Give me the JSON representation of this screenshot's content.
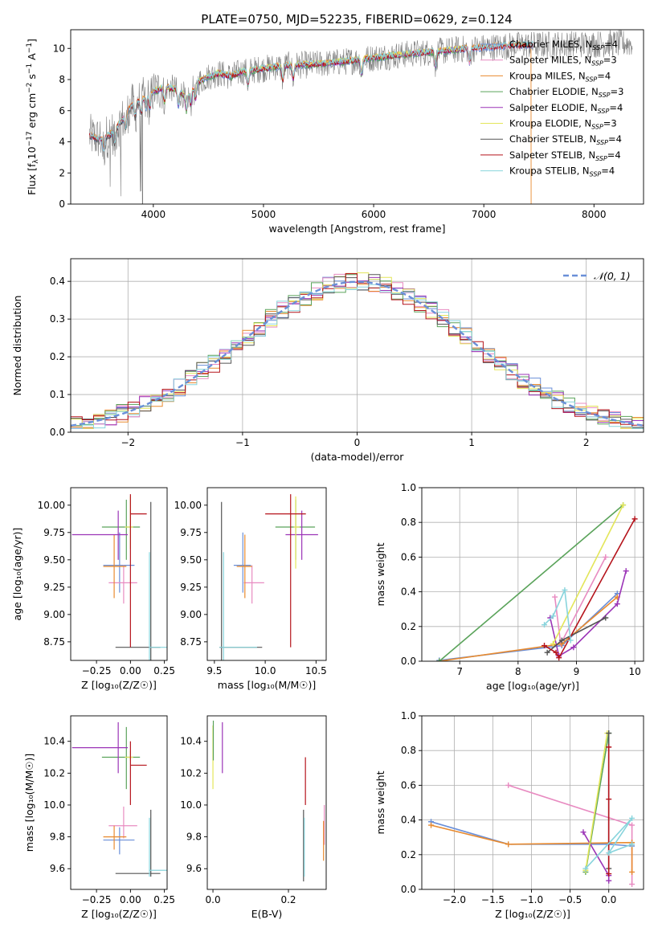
{
  "figure_title": "PLATE=0750, MJD=52235, FIBERID=0629, z=0.124",
  "colors": {
    "chabrier_miles": "#6a8fd8",
    "salpeter_miles": "#e88bc1",
    "kroupa_miles": "#e88a2e",
    "chabrier_elodie": "#5aa35a",
    "salpeter_elodie": "#9b34b7",
    "kroupa_elodie": "#e3e65a",
    "chabrier_stelib": "#555555",
    "salpeter_stelib": "#b5141c",
    "kroupa_stelib": "#88d4dc",
    "normal": "#6a8fd8",
    "data_spectrum": "#808080"
  },
  "chart_data": [
    {
      "id": "spectrum",
      "type": "line",
      "title": "PLATE=0750, MJD=52235, FIBERID=0629, z=0.124",
      "xlabel": "wavelength [Angstrom, rest frame]",
      "ylabel_parts": [
        "Flux [f",
        "λ",
        "10",
        "−17",
        " erg cm",
        "−2",
        " s",
        "−1",
        " A",
        "−1",
        "]"
      ],
      "xlim": [
        3250,
        8450
      ],
      "ylim": [
        0,
        11.2
      ],
      "xticks": [
        "4000",
        "5000",
        "6000",
        "7000",
        "8000"
      ],
      "xtick_values": [
        4000,
        5000,
        6000,
        7000,
        8000
      ],
      "yticks": [
        "0",
        "2",
        "4",
        "6",
        "8",
        "10"
      ],
      "ytick_values": [
        0,
        2,
        4,
        6,
        8,
        10
      ],
      "grid": false,
      "legend_position": "top-right",
      "legend": [
        {
          "key": "chabrier_miles",
          "label": "Chabrier MILES, N",
          "sub": "SSP",
          "tail": "=4"
        },
        {
          "key": "salpeter_miles",
          "label": "Salpeter MILES, N",
          "sub": "SSP",
          "tail": "=3"
        },
        {
          "key": "kroupa_miles",
          "label": "Kroupa MILES, N",
          "sub": "SSP",
          "tail": "=4"
        },
        {
          "key": "chabrier_elodie",
          "label": "Chabrier ELODIE, N",
          "sub": "SSP",
          "tail": "=3"
        },
        {
          "key": "salpeter_elodie",
          "label": "Salpeter ELODIE, N",
          "sub": "SSP",
          "tail": "=4"
        },
        {
          "key": "kroupa_elodie",
          "label": "Kroupa ELODIE, N",
          "sub": "SSP",
          "tail": "=3"
        },
        {
          "key": "chabrier_stelib",
          "label": "Chabrier STELIB, N",
          "sub": "SSP",
          "tail": "=4"
        },
        {
          "key": "salpeter_stelib",
          "label": "Salpeter STELIB, N",
          "sub": "SSP",
          "tail": "=4"
        },
        {
          "key": "kroupa_stelib",
          "label": "Kroupa STELIB, N",
          "sub": "SSP",
          "tail": "=4"
        }
      ],
      "continuum": {
        "x": [
          3420,
          3500,
          3600,
          3700,
          3800,
          3900,
          4000,
          4100,
          4200,
          4300,
          4400,
          4500,
          4600,
          4700,
          4800,
          4900,
          5000,
          5200,
          5400,
          5600,
          5800,
          6000,
          6200,
          6400,
          6600,
          6800,
          7000,
          7200,
          7300
        ],
        "y": [
          4.4,
          4.2,
          4.4,
          5.2,
          6.3,
          6.8,
          7.2,
          7.5,
          7.4,
          6.9,
          7.8,
          8.2,
          8.4,
          8.2,
          8.5,
          8.6,
          8.7,
          8.9,
          8.95,
          9.05,
          9.2,
          9.4,
          9.55,
          9.7,
          9.8,
          9.95,
          10.05,
          10.15,
          10.2
        ]
      },
      "data_noise": 0.9,
      "data_range": [
        3420,
        8350
      ],
      "model_range": [
        3420,
        7450
      ],
      "model_dropouts": [
        {
          "key": "kroupa_miles",
          "x": 7430
        },
        {
          "key": "kroupa_elodie",
          "x": 6800
        },
        {
          "key": "chabrier_stelib",
          "x": 3900
        }
      ]
    },
    {
      "id": "residuals",
      "type": "line",
      "xlabel": "(data-model)/error",
      "ylabel": "Normed distribution",
      "xlim": [
        -2.5,
        2.5
      ],
      "ylim": [
        0,
        0.46
      ],
      "xticks": [
        "−2",
        "−1",
        "0",
        "1",
        "2"
      ],
      "xtick_values": [
        -2,
        -1,
        0,
        1,
        2
      ],
      "yticks": [
        "0.0",
        "0.1",
        "0.2",
        "0.3",
        "0.4"
      ],
      "ytick_values": [
        0,
        0.1,
        0.2,
        0.3,
        0.4
      ],
      "grid": true,
      "legend_position": "top-right",
      "legend_label": "𝒩(0, 1)",
      "bin_width": 0.1
    },
    {
      "id": "age_vs_z",
      "type": "scatter",
      "xlabel": "Z [log₁₀(Z/Z☉)]",
      "ylabel": "age  [log₁₀(age/yr)]",
      "xlim": [
        -0.44,
        0.27
      ],
      "ylim": [
        8.58,
        10.16
      ],
      "xticks": [
        "−0.25",
        "0.00",
        "0.25"
      ],
      "xtick_values": [
        -0.25,
        0,
        0.25
      ],
      "yticks": [
        "8.75",
        "9.00",
        "9.25",
        "9.50",
        "9.75",
        "10.00"
      ],
      "ytick_values": [
        8.75,
        9.0,
        9.25,
        9.5,
        9.75,
        10.0
      ],
      "points": [
        {
          "key": "chabrier_miles",
          "x": -0.08,
          "y": 9.45,
          "xlo": -0.2,
          "xhi": 0.03,
          "ylo": 9.2,
          "yhi": 9.75
        },
        {
          "key": "salpeter_miles",
          "x": -0.05,
          "y": 9.29,
          "xlo": -0.16,
          "xhi": 0.05,
          "ylo": 9.1,
          "yhi": 9.45
        },
        {
          "key": "kroupa_miles",
          "x": -0.12,
          "y": 9.44,
          "xlo": -0.2,
          "xhi": -0.03,
          "ylo": 9.15,
          "yhi": 9.73
        },
        {
          "key": "chabrier_elodie",
          "x": -0.03,
          "y": 9.8,
          "xlo": -0.21,
          "xhi": 0.07,
          "ylo": 9.5,
          "yhi": 10.05
        },
        {
          "key": "salpeter_elodie",
          "x": -0.09,
          "y": 9.73,
          "xlo": -0.43,
          "xhi": -0.02,
          "ylo": 9.5,
          "yhi": 9.95
        },
        {
          "key": "kroupa_elodie",
          "x": 0.0,
          "y": 9.8,
          "xlo": -0.04,
          "xhi": 0.02,
          "ylo": 9.6,
          "yhi": 10.08
        },
        {
          "key": "chabrier_stelib",
          "x": 0.15,
          "y": 8.7,
          "xlo": -0.11,
          "xhi": 0.22,
          "ylo": 8.55,
          "yhi": 10.03
        },
        {
          "key": "salpeter_stelib",
          "x": 0.0,
          "y": 9.92,
          "xlo": 0.0,
          "xhi": 0.12,
          "ylo": 8.7,
          "yhi": 10.1
        },
        {
          "key": "kroupa_stelib",
          "x": 0.14,
          "y": 8.7,
          "xlo": 0.14,
          "xhi": 0.28,
          "ylo": 8.55,
          "yhi": 9.57
        }
      ]
    },
    {
      "id": "age_vs_mass",
      "type": "scatter",
      "xlabel": "mass [log₁₀(M/M☉)]",
      "ylabel": "",
      "xlim": [
        9.43,
        10.6
      ],
      "ylim": [
        8.58,
        10.16
      ],
      "xticks": [
        "9.5",
        "10.0",
        "10.5"
      ],
      "xtick_values": [
        9.5,
        10.0,
        10.5
      ],
      "yticks": [
        "8.75",
        "9.00",
        "9.25",
        "9.50",
        "9.75",
        "10.00"
      ],
      "ytick_values": [
        8.75,
        9.0,
        9.25,
        9.5,
        9.75,
        10.0
      ],
      "points": [
        {
          "key": "chabrier_miles",
          "x": 9.78,
          "y": 9.45,
          "xlo": 9.69,
          "xhi": 9.86,
          "ylo": 9.2,
          "yhi": 9.75
        },
        {
          "key": "salpeter_miles",
          "x": 9.87,
          "y": 9.29,
          "xlo": 9.79,
          "xhi": 9.99,
          "ylo": 9.1,
          "yhi": 9.45
        },
        {
          "key": "kroupa_miles",
          "x": 9.8,
          "y": 9.44,
          "xlo": 9.72,
          "xhi": 9.87,
          "ylo": 9.15,
          "yhi": 9.73
        },
        {
          "key": "chabrier_elodie",
          "x": 10.3,
          "y": 9.8,
          "xlo": 10.1,
          "xhi": 10.49,
          "ylo": 9.5,
          "yhi": 10.05
        },
        {
          "key": "salpeter_elodie",
          "x": 10.36,
          "y": 9.73,
          "xlo": 10.2,
          "xhi": 10.52,
          "ylo": 9.5,
          "yhi": 9.95
        },
        {
          "key": "kroupa_elodie",
          "x": 10.3,
          "y": 9.8,
          "xlo": 10.28,
          "xhi": 10.34,
          "ylo": 9.42,
          "yhi": 10.08
        },
        {
          "key": "chabrier_stelib",
          "x": 9.57,
          "y": 8.7,
          "xlo": 9.55,
          "xhi": 9.97,
          "ylo": 8.55,
          "yhi": 10.03
        },
        {
          "key": "salpeter_stelib",
          "x": 10.25,
          "y": 9.92,
          "xlo": 10.0,
          "xhi": 10.4,
          "ylo": 8.7,
          "yhi": 10.1
        },
        {
          "key": "kroupa_stelib",
          "x": 9.59,
          "y": 8.7,
          "xlo": 9.55,
          "xhi": 9.92,
          "ylo": 8.55,
          "yhi": 9.57
        }
      ]
    },
    {
      "id": "weight_vs_age",
      "type": "line",
      "xlabel": "age  [log₁₀(age/yr)]",
      "ylabel": "mass weight",
      "xlim": [
        6.35,
        10.15
      ],
      "ylim": [
        0,
        1.0
      ],
      "xticks": [
        "7",
        "8",
        "9",
        "10"
      ],
      "xtick_values": [
        7,
        8,
        9,
        10
      ],
      "yticks": [
        "0.0",
        "0.2",
        "0.4",
        "0.6",
        "0.8",
        "1.0"
      ],
      "ytick_values": [
        0,
        0.2,
        0.4,
        0.6,
        0.8,
        1.0
      ],
      "grid": true,
      "series": [
        {
          "key": "chabrier_miles",
          "x": [
            6.65,
            8.75,
            9.7
          ],
          "y": [
            0.005,
            0.09,
            0.39
          ]
        },
        {
          "key": "salpeter_miles",
          "x": [
            8.63,
            8.73,
            9.5
          ],
          "y": [
            0.37,
            0.1,
            0.6
          ]
        },
        {
          "key": "kroupa_miles",
          "x": [
            6.65,
            8.75,
            9.7
          ],
          "y": [
            0.0,
            0.1,
            0.37
          ]
        },
        {
          "key": "chabrier_elodie",
          "x": [
            6.65,
            9.8
          ],
          "y": [
            0.0,
            0.9
          ]
        },
        {
          "key": "salpeter_elodie",
          "x": [
            8.55,
            8.7,
            8.95,
            9.7,
            9.85
          ],
          "y": [
            0.25,
            0.03,
            0.08,
            0.33,
            0.52
          ]
        },
        {
          "key": "kroupa_elodie",
          "x": [
            8.6,
            9.8
          ],
          "y": [
            0.1,
            0.9
          ]
        },
        {
          "key": "chabrier_stelib",
          "x": [
            8.5,
            8.75,
            9.5
          ],
          "y": [
            0.05,
            0.12,
            0.25
          ]
        },
        {
          "key": "salpeter_stelib",
          "x": [
            8.45,
            8.65,
            8.7,
            10.0
          ],
          "y": [
            0.09,
            0.05,
            0.02,
            0.82
          ]
        },
        {
          "key": "kroupa_stelib",
          "x": [
            8.45,
            8.6,
            8.8,
            8.9
          ],
          "y": [
            0.21,
            0.26,
            0.41,
            0.12
          ]
        }
      ]
    },
    {
      "id": "mass_vs_z",
      "type": "scatter",
      "xlabel": "Z [log₁₀(Z/Z☉)]",
      "ylabel": "mass [log₁₀(M/M☉)]",
      "xlim": [
        -0.44,
        0.27
      ],
      "ylim": [
        9.47,
        10.56
      ],
      "xticks": [
        "−0.25",
        "0.00",
        "0.25"
      ],
      "xtick_values": [
        -0.25,
        0,
        0.25
      ],
      "yticks": [
        "9.6",
        "9.8",
        "10.0",
        "10.2",
        "10.4"
      ],
      "ytick_values": [
        9.6,
        9.8,
        10.0,
        10.2,
        10.4
      ],
      "points": [
        {
          "key": "chabrier_miles",
          "x": -0.08,
          "y": 9.78,
          "xlo": -0.2,
          "xhi": 0.03,
          "ylo": 9.69,
          "yhi": 9.86
        },
        {
          "key": "salpeter_miles",
          "x": -0.05,
          "y": 9.87,
          "xlo": -0.16,
          "xhi": 0.05,
          "ylo": 9.79,
          "yhi": 9.99
        },
        {
          "key": "kroupa_miles",
          "x": -0.12,
          "y": 9.8,
          "xlo": -0.2,
          "xhi": -0.03,
          "ylo": 9.72,
          "yhi": 9.87
        },
        {
          "key": "chabrier_elodie",
          "x": -0.03,
          "y": 10.3,
          "xlo": -0.21,
          "xhi": 0.07,
          "ylo": 10.1,
          "yhi": 10.49
        },
        {
          "key": "salpeter_elodie",
          "x": -0.09,
          "y": 10.36,
          "xlo": -0.43,
          "xhi": -0.02,
          "ylo": 10.2,
          "yhi": 10.52
        },
        {
          "key": "kroupa_elodie",
          "x": 0.0,
          "y": 10.3,
          "xlo": -0.04,
          "xhi": 0.02,
          "ylo": 10.28,
          "yhi": 10.34
        },
        {
          "key": "chabrier_stelib",
          "x": 0.15,
          "y": 9.57,
          "xlo": -0.11,
          "xhi": 0.22,
          "ylo": 9.55,
          "yhi": 9.97
        },
        {
          "key": "salpeter_stelib",
          "x": 0.0,
          "y": 10.25,
          "xlo": 0.0,
          "xhi": 0.12,
          "ylo": 10.0,
          "yhi": 10.4
        },
        {
          "key": "kroupa_stelib",
          "x": 0.14,
          "y": 9.59,
          "xlo": 0.14,
          "xhi": 0.28,
          "ylo": 9.55,
          "yhi": 9.92
        }
      ]
    },
    {
      "id": "mass_vs_ebv",
      "type": "scatter",
      "xlabel": "E(B-V)",
      "ylabel": "",
      "xlim": [
        -0.015,
        0.3
      ],
      "ylim": [
        9.47,
        10.56
      ],
      "xticks": [
        "0.0",
        "0.2"
      ],
      "xtick_values": [
        0,
        0.2
      ],
      "yticks": [
        "9.6",
        "9.8",
        "10.0",
        "10.2",
        "10.4"
      ],
      "ytick_values": [
        9.6,
        9.8,
        10.0,
        10.2,
        10.4
      ],
      "vbars": [
        {
          "key": "kroupa_elodie",
          "x": 0.0,
          "ylo": 10.1,
          "yhi": 10.5
        },
        {
          "key": "chabrier_elodie",
          "x": 0.001,
          "ylo": 10.28,
          "yhi": 10.53
        },
        {
          "key": "salpeter_elodie",
          "x": 0.025,
          "ylo": 10.2,
          "yhi": 10.52
        },
        {
          "key": "salpeter_stelib",
          "x": 0.245,
          "ylo": 10.0,
          "yhi": 10.3
        },
        {
          "key": "chabrier_stelib",
          "x": 0.24,
          "ylo": 9.52,
          "yhi": 9.97
        },
        {
          "key": "kroupa_stelib",
          "x": 0.242,
          "ylo": 9.55,
          "yhi": 9.92
        },
        {
          "key": "salpeter_miles",
          "x": 0.295,
          "ylo": 9.75,
          "yhi": 10.0
        },
        {
          "key": "kroupa_miles",
          "x": 0.293,
          "ylo": 9.65,
          "yhi": 9.9
        }
      ]
    },
    {
      "id": "weight_vs_z",
      "type": "line",
      "xlabel": "Z [log₁₀(Z/Z☉)]",
      "ylabel": "mass weight",
      "xlim": [
        -2.42,
        0.45
      ],
      "ylim": [
        0,
        1.0
      ],
      "xticks": [
        "−2.0",
        "−1.5",
        "−1.0",
        "−0.5",
        "0.0"
      ],
      "xtick_values": [
        -2.0,
        -1.5,
        -1.0,
        -0.5,
        0.0
      ],
      "yticks": [
        "0.0",
        "0.2",
        "0.4",
        "0.6",
        "0.8",
        "1.0"
      ],
      "ytick_values": [
        0,
        0.2,
        0.4,
        0.6,
        0.8,
        1.0
      ],
      "grid": true,
      "series": [
        {
          "key": "chabrier_miles",
          "x": [
            -2.3,
            -1.3,
            0.0,
            0.3
          ],
          "y": [
            0.39,
            0.26,
            0.26,
            0.25
          ]
        },
        {
          "key": "salpeter_miles",
          "x": [
            -1.3,
            0.3,
            0.3
          ],
          "y": [
            0.6,
            0.37,
            0.03
          ]
        },
        {
          "key": "kroupa_miles",
          "x": [
            -2.3,
            -1.3,
            0.3,
            0.3
          ],
          "y": [
            0.37,
            0.26,
            0.27,
            0.1
          ]
        },
        {
          "key": "chabrier_elodie",
          "x": [
            -0.3,
            0.0
          ],
          "y": [
            0.1,
            0.9
          ]
        },
        {
          "key": "salpeter_elodie",
          "x": [
            -0.33,
            0.0,
            0.0
          ],
          "y": [
            0.33,
            0.08,
            0.05
          ]
        },
        {
          "key": "kroupa_elodie",
          "x": [
            -0.3,
            -0.02
          ],
          "y": [
            0.11,
            0.9
          ]
        },
        {
          "key": "chabrier_stelib",
          "x": [
            0.0,
            0.0
          ],
          "y": [
            0.12,
            0.9
          ]
        },
        {
          "key": "salpeter_stelib",
          "x": [
            0.0,
            0.0,
            0.0
          ],
          "y": [
            0.09,
            0.52,
            0.82
          ]
        },
        {
          "key": "kroupa_stelib",
          "x": [
            -0.3,
            0.3,
            0.0,
            0.3
          ],
          "y": [
            0.12,
            0.41,
            0.21,
            0.26
          ]
        }
      ]
    }
  ]
}
